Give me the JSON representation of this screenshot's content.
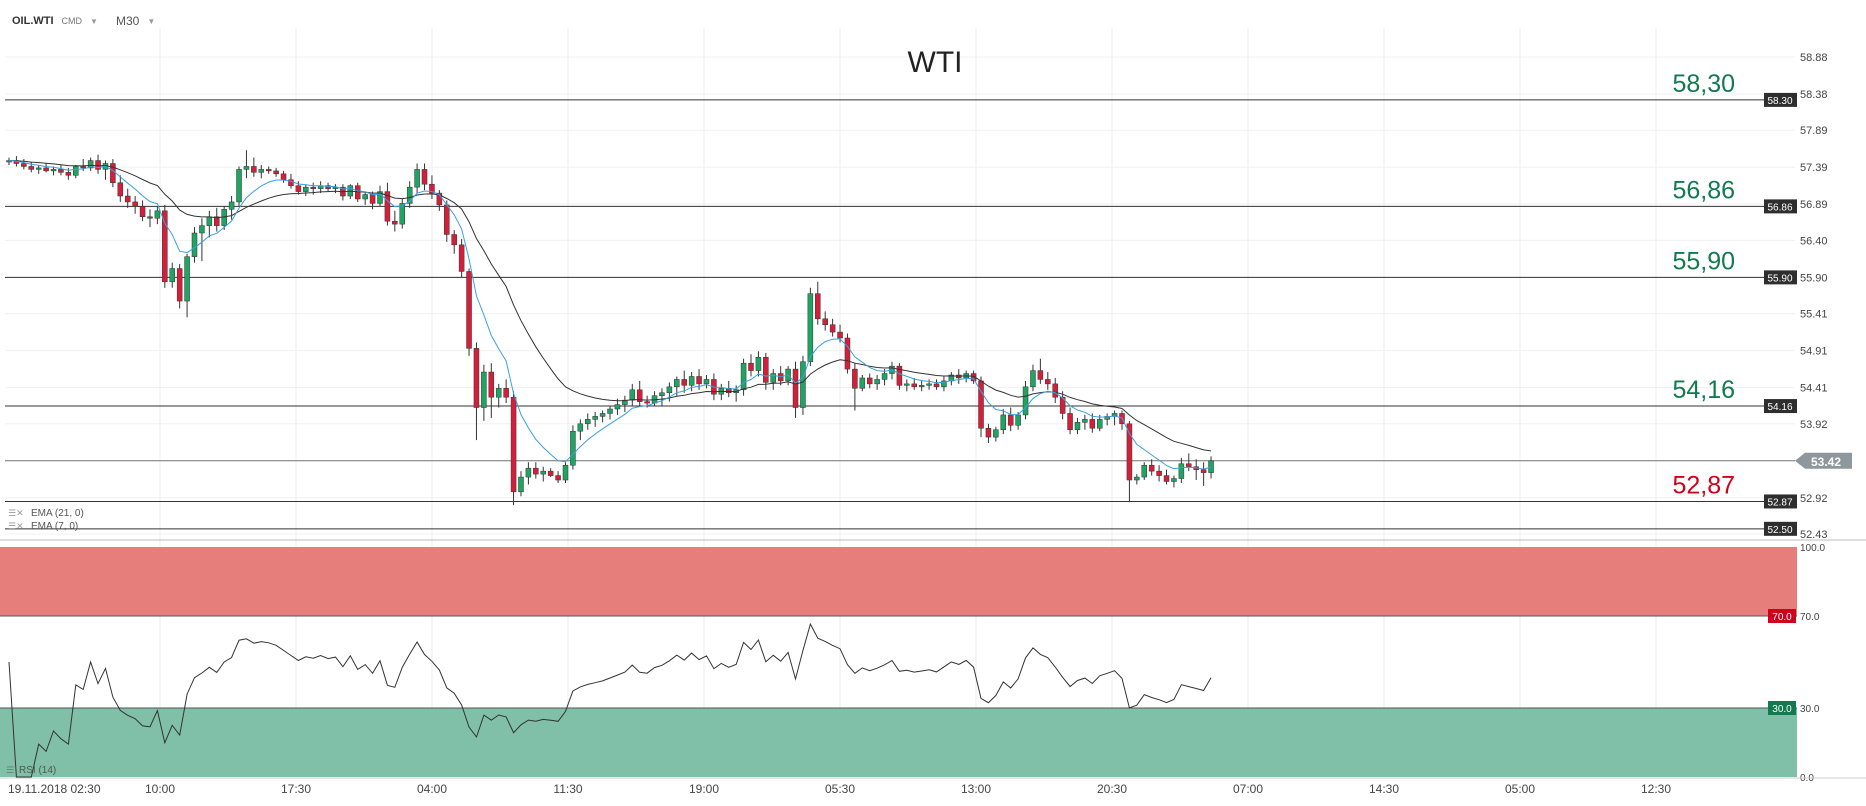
{
  "header": {
    "symbol": "OIL.WTI",
    "mode": "CMD",
    "timeframe": "M30"
  },
  "chart_data": {
    "type": "candlestick",
    "title": "WTI",
    "ylim": [
      52.43,
      58.88
    ],
    "y_ticks": [
      "58.88",
      "58.38",
      "57.89",
      "57.39",
      "56.89",
      "56.40",
      "55.90",
      "55.41",
      "54.91",
      "54.41",
      "53.92",
      "53.42",
      "52.92",
      "52.43"
    ],
    "x_tick_labels": [
      "19.11.2018  02:30",
      "10:00",
      "17:30",
      "04:00",
      "11:30",
      "19:00",
      "05:30",
      "13:00",
      "20:30",
      "07:00",
      "14:30",
      "05:00",
      "12:30"
    ],
    "levels": [
      {
        "value": 58.3,
        "big_label": "58,30",
        "tag": "58.30",
        "color": "#117a4f"
      },
      {
        "value": 56.86,
        "big_label": "56,86",
        "tag": "56.86",
        "color": "#117a4f"
      },
      {
        "value": 55.9,
        "big_label": "55,90",
        "tag": "55.90",
        "color": "#117a4f"
      },
      {
        "value": 54.16,
        "big_label": "54,16",
        "tag": "54.16",
        "color": "#117a4f"
      },
      {
        "value": 52.87,
        "big_label": "52,87",
        "tag": "52.87",
        "color": "#d0021b"
      }
    ],
    "current_price": {
      "value": 53.42,
      "tag": "53.42"
    },
    "bottom_tag": {
      "value": 52.5,
      "tag": "52.50"
    },
    "candles": [
      [
        57.46,
        57.52,
        57.42,
        57.48
      ],
      [
        57.48,
        57.54,
        57.4,
        57.44
      ],
      [
        57.44,
        57.5,
        57.36,
        57.4
      ],
      [
        57.4,
        57.46,
        57.32,
        57.36
      ],
      [
        57.36,
        57.42,
        57.3,
        57.38
      ],
      [
        57.38,
        57.44,
        57.32,
        57.34
      ],
      [
        57.34,
        57.4,
        57.28,
        57.36
      ],
      [
        57.36,
        57.42,
        57.28,
        57.32
      ],
      [
        57.32,
        57.38,
        57.22,
        57.28
      ],
      [
        57.28,
        57.42,
        57.24,
        57.4
      ],
      [
        57.4,
        57.5,
        57.34,
        57.38
      ],
      [
        57.38,
        57.52,
        57.34,
        57.48
      ],
      [
        57.48,
        57.56,
        57.3,
        57.36
      ],
      [
        57.36,
        57.48,
        57.22,
        57.44
      ],
      [
        57.44,
        57.5,
        57.12,
        57.18
      ],
      [
        57.18,
        57.28,
        56.92,
        57.0
      ],
      [
        57.0,
        57.1,
        56.84,
        56.92
      ],
      [
        56.92,
        57.0,
        56.76,
        56.86
      ],
      [
        56.86,
        56.94,
        56.66,
        56.72
      ],
      [
        56.72,
        56.82,
        56.58,
        56.7
      ],
      [
        56.7,
        56.86,
        56.62,
        56.8
      ],
      [
        56.8,
        56.88,
        55.76,
        55.84
      ],
      [
        55.84,
        56.1,
        55.76,
        56.02
      ],
      [
        56.02,
        56.08,
        55.48,
        55.58
      ],
      [
        55.58,
        56.22,
        55.36,
        56.18
      ],
      [
        56.18,
        56.58,
        56.1,
        56.5
      ],
      [
        56.5,
        56.7,
        56.12,
        56.6
      ],
      [
        56.6,
        56.8,
        56.44,
        56.72
      ],
      [
        56.72,
        56.84,
        56.52,
        56.6
      ],
      [
        56.6,
        56.86,
        56.54,
        56.82
      ],
      [
        56.82,
        57.0,
        56.68,
        56.92
      ],
      [
        56.92,
        57.4,
        56.86,
        57.36
      ],
      [
        57.36,
        57.62,
        57.24,
        57.4
      ],
      [
        57.4,
        57.52,
        57.26,
        57.32
      ],
      [
        57.32,
        57.42,
        57.24,
        57.36
      ],
      [
        57.36,
        57.4,
        57.3,
        57.34
      ],
      [
        57.34,
        57.38,
        57.26,
        57.3
      ],
      [
        57.3,
        57.34,
        57.18,
        57.22
      ],
      [
        57.22,
        57.3,
        57.1,
        57.14
      ],
      [
        57.14,
        57.2,
        57.02,
        57.06
      ],
      [
        57.06,
        57.16,
        57.0,
        57.12
      ],
      [
        57.12,
        57.18,
        57.02,
        57.1
      ],
      [
        57.1,
        57.2,
        57.04,
        57.14
      ],
      [
        57.14,
        57.18,
        57.06,
        57.1
      ],
      [
        57.1,
        57.16,
        57.04,
        57.12
      ],
      [
        57.12,
        57.16,
        56.94,
        57.0
      ],
      [
        57.0,
        57.16,
        56.96,
        57.14
      ],
      [
        57.14,
        57.18,
        56.92,
        56.96
      ],
      [
        56.96,
        57.06,
        56.88,
        57.02
      ],
      [
        57.02,
        57.06,
        56.82,
        56.9
      ],
      [
        56.9,
        57.14,
        56.86,
        57.06
      ],
      [
        57.06,
        57.18,
        56.6,
        56.66
      ],
      [
        56.66,
        56.8,
        56.52,
        56.62
      ],
      [
        56.62,
        56.96,
        56.56,
        56.9
      ],
      [
        56.9,
        57.2,
        56.84,
        57.12
      ],
      [
        57.12,
        57.44,
        57.04,
        57.36
      ],
      [
        57.36,
        57.44,
        57.08,
        57.16
      ],
      [
        57.16,
        57.28,
        56.96,
        57.04
      ],
      [
        57.04,
        57.08,
        56.8,
        56.88
      ],
      [
        56.88,
        56.94,
        56.38,
        56.48
      ],
      [
        56.48,
        56.54,
        56.22,
        56.34
      ],
      [
        56.34,
        56.42,
        55.9,
        55.98
      ],
      [
        55.98,
        56.02,
        54.84,
        54.94
      ],
      [
        54.94,
        55.02,
        53.7,
        54.14
      ],
      [
        54.14,
        54.72,
        53.96,
        54.62
      ],
      [
        54.62,
        54.74,
        54.0,
        54.28
      ],
      [
        54.28,
        54.46,
        54.14,
        54.4
      ],
      [
        54.4,
        54.52,
        54.2,
        54.28
      ],
      [
        54.28,
        54.36,
        52.82,
        53.0
      ],
      [
        53.0,
        53.28,
        52.94,
        53.2
      ],
      [
        53.2,
        53.4,
        53.1,
        53.32
      ],
      [
        53.32,
        53.4,
        53.18,
        53.24
      ],
      [
        53.24,
        53.34,
        53.14,
        53.28
      ],
      [
        53.28,
        53.32,
        53.2,
        53.22
      ],
      [
        53.22,
        53.28,
        53.12,
        53.16
      ],
      [
        53.16,
        53.4,
        53.12,
        53.36
      ],
      [
        53.36,
        53.9,
        53.3,
        53.82
      ],
      [
        53.82,
        53.98,
        53.7,
        53.92
      ],
      [
        53.92,
        54.06,
        53.84,
        53.98
      ],
      [
        53.98,
        54.08,
        53.88,
        54.02
      ],
      [
        54.02,
        54.1,
        53.94,
        54.06
      ],
      [
        54.06,
        54.16,
        53.98,
        54.12
      ],
      [
        54.12,
        54.26,
        54.04,
        54.18
      ],
      [
        54.18,
        54.3,
        54.08,
        54.24
      ],
      [
        54.24,
        54.46,
        54.16,
        54.38
      ],
      [
        54.38,
        54.5,
        54.16,
        54.22
      ],
      [
        54.22,
        54.3,
        54.14,
        54.2
      ],
      [
        54.2,
        54.36,
        54.16,
        54.3
      ],
      [
        54.3,
        54.4,
        54.16,
        54.34
      ],
      [
        54.34,
        54.48,
        54.22,
        54.42
      ],
      [
        54.42,
        54.56,
        54.3,
        54.52
      ],
      [
        54.52,
        54.64,
        54.34,
        54.44
      ],
      [
        54.44,
        54.62,
        54.36,
        54.56
      ],
      [
        54.56,
        54.66,
        54.38,
        54.46
      ],
      [
        54.46,
        54.58,
        54.4,
        54.52
      ],
      [
        54.52,
        54.6,
        54.24,
        54.32
      ],
      [
        54.32,
        54.46,
        54.24,
        54.4
      ],
      [
        54.4,
        54.5,
        54.28,
        54.34
      ],
      [
        54.34,
        54.44,
        54.22,
        54.38
      ],
      [
        54.38,
        54.8,
        54.3,
        54.74
      ],
      [
        54.74,
        54.86,
        54.56,
        54.64
      ],
      [
        54.64,
        54.9,
        54.56,
        54.82
      ],
      [
        54.82,
        54.88,
        54.38,
        54.48
      ],
      [
        54.48,
        54.66,
        54.38,
        54.6
      ],
      [
        54.6,
        54.7,
        54.44,
        54.5
      ],
      [
        54.5,
        54.7,
        54.44,
        54.66
      ],
      [
        54.66,
        54.76,
        54.0,
        54.14
      ],
      [
        54.14,
        54.84,
        54.04,
        54.76
      ],
      [
        54.76,
        55.76,
        54.7,
        55.68
      ],
      [
        55.68,
        55.84,
        55.26,
        55.34
      ],
      [
        55.34,
        55.44,
        55.18,
        55.26
      ],
      [
        55.26,
        55.34,
        55.1,
        55.16
      ],
      [
        55.16,
        55.26,
        55.02,
        55.08
      ],
      [
        55.08,
        55.14,
        54.6,
        54.66
      ],
      [
        54.66,
        54.74,
        54.1,
        54.4
      ],
      [
        54.4,
        54.58,
        54.36,
        54.54
      ],
      [
        54.54,
        54.6,
        54.4,
        54.46
      ],
      [
        54.46,
        54.58,
        54.38,
        54.52
      ],
      [
        54.52,
        54.66,
        54.44,
        54.6
      ],
      [
        54.6,
        54.76,
        54.52,
        54.7
      ],
      [
        54.7,
        54.74,
        54.38,
        54.44
      ],
      [
        54.44,
        54.52,
        54.36,
        54.46
      ],
      [
        54.46,
        54.54,
        54.38,
        54.42
      ],
      [
        54.42,
        54.5,
        54.36,
        54.44
      ],
      [
        54.44,
        54.52,
        54.38,
        54.46
      ],
      [
        54.46,
        54.52,
        54.38,
        54.42
      ],
      [
        54.42,
        54.56,
        54.36,
        54.5
      ],
      [
        54.5,
        54.62,
        54.44,
        54.58
      ],
      [
        54.58,
        54.66,
        54.46,
        54.54
      ],
      [
        54.54,
        54.64,
        54.48,
        54.6
      ],
      [
        54.6,
        54.64,
        54.46,
        54.5
      ],
      [
        54.5,
        54.56,
        53.74,
        53.86
      ],
      [
        53.86,
        53.92,
        53.66,
        53.74
      ],
      [
        53.74,
        53.88,
        53.68,
        53.84
      ],
      [
        53.84,
        54.12,
        53.78,
        54.04
      ],
      [
        54.04,
        54.14,
        53.82,
        53.9
      ],
      [
        53.9,
        54.08,
        53.84,
        54.04
      ],
      [
        54.04,
        54.5,
        53.98,
        54.42
      ],
      [
        54.42,
        54.72,
        54.36,
        54.64
      ],
      [
        54.64,
        54.8,
        54.46,
        54.52
      ],
      [
        54.52,
        54.62,
        54.38,
        54.46
      ],
      [
        54.46,
        54.54,
        54.2,
        54.28
      ],
      [
        54.28,
        54.36,
        53.98,
        54.06
      ],
      [
        54.06,
        54.14,
        53.78,
        53.84
      ],
      [
        53.84,
        54.0,
        53.78,
        53.94
      ],
      [
        53.94,
        54.04,
        53.84,
        53.98
      ],
      [
        53.98,
        54.06,
        53.8,
        53.86
      ],
      [
        53.86,
        54.04,
        53.82,
        53.98
      ],
      [
        53.98,
        54.06,
        53.9,
        54.02
      ],
      [
        54.02,
        54.1,
        53.9,
        54.06
      ],
      [
        54.06,
        54.1,
        53.84,
        53.92
      ],
      [
        53.92,
        53.96,
        52.86,
        53.16
      ],
      [
        53.16,
        53.24,
        53.1,
        53.2
      ],
      [
        53.2,
        53.4,
        53.16,
        53.36
      ],
      [
        53.36,
        53.44,
        53.22,
        53.28
      ],
      [
        53.28,
        53.36,
        53.14,
        53.22
      ],
      [
        53.22,
        53.3,
        53.1,
        53.14
      ],
      [
        53.14,
        53.22,
        53.06,
        53.18
      ],
      [
        53.18,
        53.46,
        53.12,
        53.38
      ],
      [
        53.38,
        53.52,
        53.28,
        53.34
      ],
      [
        53.34,
        53.44,
        53.16,
        53.3
      ],
      [
        53.3,
        53.4,
        53.08,
        53.26
      ],
      [
        53.26,
        53.48,
        53.18,
        53.42
      ]
    ],
    "ema_21_label": "EMA (21, 0)",
    "ema_7_label": "EMA (7, 0)",
    "rsi": {
      "label": "RSI (14)",
      "ylim": [
        0,
        100
      ],
      "ticks": [
        "100.0",
        "70.0",
        "30.0",
        "0.0"
      ],
      "overbought": {
        "value": 70,
        "tag": "70.0"
      },
      "oversold": {
        "value": 30,
        "tag": "30.0"
      }
    }
  }
}
